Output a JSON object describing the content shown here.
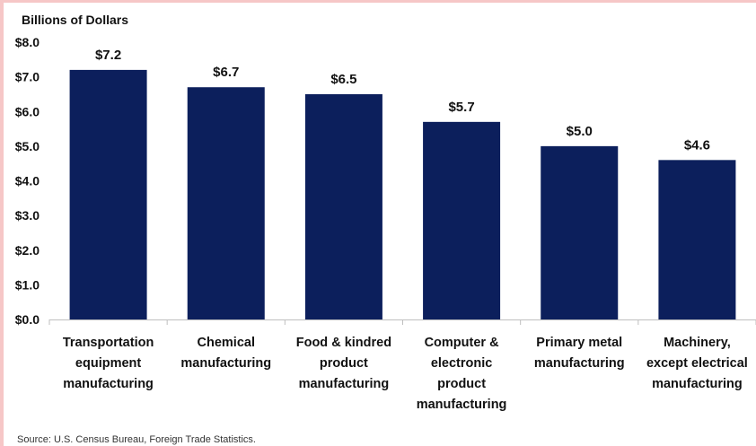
{
  "chart_data": {
    "type": "bar",
    "ylabel": "Billions of Dollars",
    "categories": [
      [
        "Transportation",
        "equipment",
        "manufacturing"
      ],
      [
        "Chemical",
        "manufacturing"
      ],
      [
        "Food & kindred",
        "product",
        "manufacturing"
      ],
      [
        "Computer &",
        "electronic",
        "product",
        "manufacturing"
      ],
      [
        "Primary metal",
        "manufacturing"
      ],
      [
        "Machinery,",
        "except electrical",
        "manufacturing"
      ]
    ],
    "values": [
      7.2,
      6.7,
      6.5,
      5.7,
      5.0,
      4.6
    ],
    "data_labels": [
      "$7.2",
      "$6.7",
      "$6.5",
      "$5.7",
      "$5.0",
      "$4.6"
    ],
    "yticks": [
      "$0.0",
      "$1.0",
      "$2.0",
      "$3.0",
      "$4.0",
      "$5.0",
      "$6.0",
      "$7.0",
      "$8.0"
    ],
    "ylim": [
      0,
      8
    ],
    "grid": false,
    "bar_color": "#0c1f5c"
  },
  "source": "Source: U.S. Census Bureau, Foreign Trade Statistics."
}
